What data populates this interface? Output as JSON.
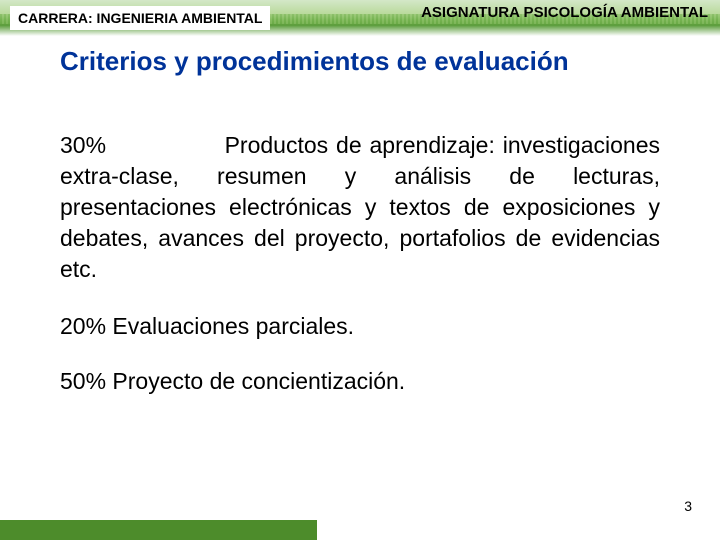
{
  "header": {
    "career": "CARRERA: INGENIERIA AMBIENTAL",
    "subject": "ASIGNATURA PSICOLOGÍA AMBIENTAL",
    "career_fontsize": 14,
    "subject_fontsize": 15,
    "band_colors": [
      "#d4e8c8",
      "#b8d99a",
      "#7fb85a",
      "#5a9c3a"
    ]
  },
  "title": {
    "text": "Criterios y procedimientos de evaluación",
    "color": "#003399",
    "fontsize": 26
  },
  "body": {
    "fontsize": 23,
    "color": "#000000",
    "item1_pct": "30%",
    "item1_text": "Productos de aprendizaje: investigaciones extra-clase, resumen y análisis de lecturas, presentaciones electrónicas y textos de exposiciones y  debates, avances del proyecto, portafolios de evidencias etc.",
    "item2": "20%   Evaluaciones parciales.",
    "item3": "50%   Proyecto de concientización."
  },
  "footer": {
    "page_number": "3",
    "page_fontsize": 14,
    "bar_color": "#4d8c2b",
    "bar_width_pct": 44
  }
}
